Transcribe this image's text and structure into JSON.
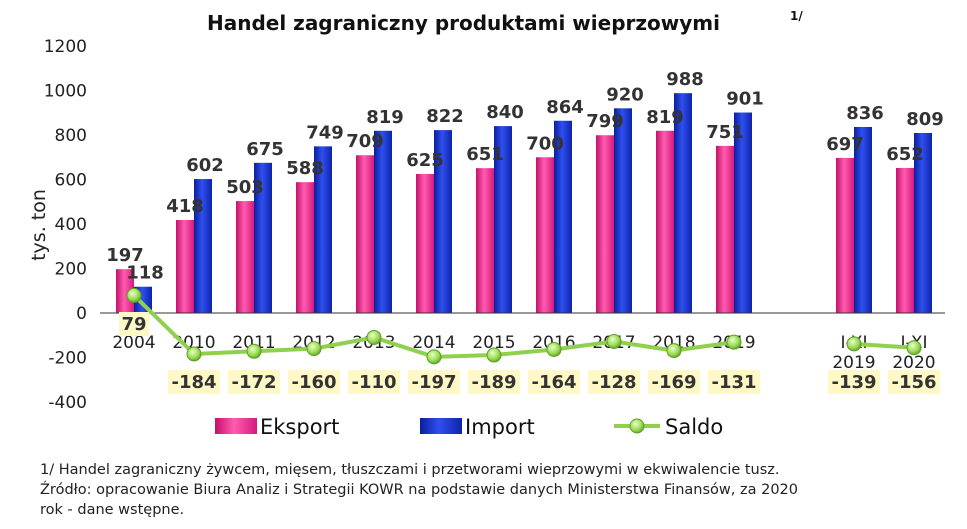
{
  "chart_data": {
    "type": "bar",
    "title": "Handel zagraniczny produktami wieprzowymi",
    "title_sup": "1/",
    "ylabel": "tys. ton",
    "xlabel": "",
    "ylim": [
      -400,
      1200
    ],
    "yticks": [
      -400,
      -200,
      0,
      200,
      400,
      600,
      800,
      1000,
      1200
    ],
    "grid": false,
    "legend_position": "bottom",
    "categories": [
      [
        "2004"
      ],
      [
        "2010"
      ],
      [
        "2011"
      ],
      [
        "2012"
      ],
      [
        "2013"
      ],
      [
        "2014"
      ],
      [
        "2015"
      ],
      [
        "2016"
      ],
      [
        "2017"
      ],
      [
        "2018"
      ],
      [
        "2019"
      ],
      [
        "I-XI",
        "2019"
      ],
      [
        "I-XI",
        "2020"
      ]
    ],
    "series": [
      {
        "name": "Eksport",
        "kind": "bar",
        "color": "#ee2e8f",
        "values": [
          197,
          418,
          503,
          588,
          709,
          625,
          651,
          700,
          799,
          819,
          751,
          697,
          652
        ]
      },
      {
        "name": "Import",
        "kind": "bar",
        "color": "#1530c8",
        "values": [
          118,
          602,
          675,
          749,
          819,
          822,
          840,
          864,
          920,
          988,
          901,
          836,
          809
        ]
      },
      {
        "name": "Saldo",
        "kind": "line",
        "color": "#8fd14f",
        "values": [
          79,
          -184,
          -172,
          -160,
          -110,
          -197,
          -189,
          -164,
          -128,
          -169,
          -131,
          -139,
          -156
        ]
      }
    ],
    "label_colors": {
      "saldo_label_bg": "#fdf8c5"
    }
  },
  "footnote": {
    "line1": "1/ Handel zagraniczny żywcem, mięsem, tłuszczami i przetworami wieprzowymi w ekwiwalencie tusz.",
    "line2": "Źródło: opracowanie Biura Analiz i Strategii KOWR na podstawie danych Ministerstwa Finansów, za 2020",
    "line3": "rok - dane wstępne."
  }
}
